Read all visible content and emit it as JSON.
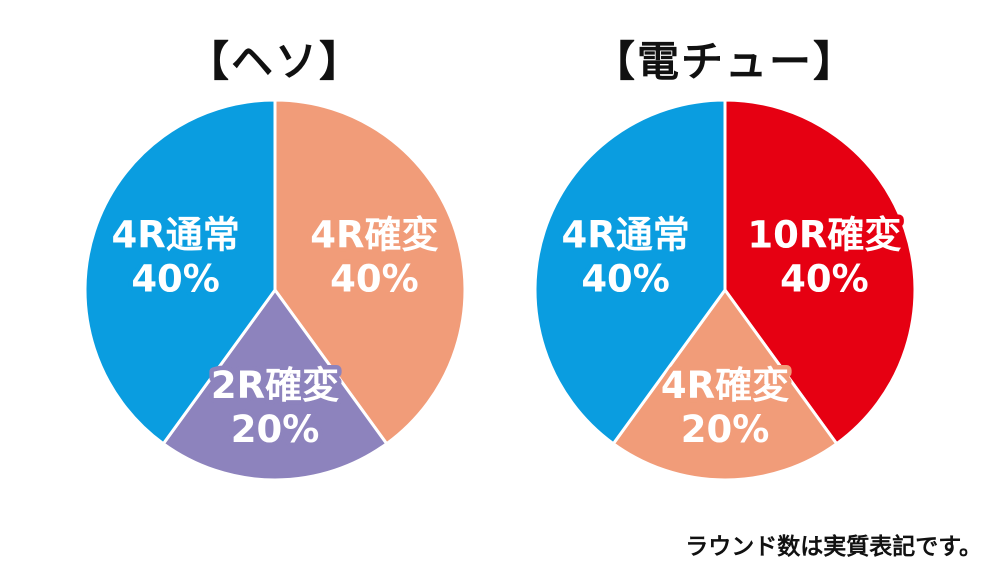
{
  "chart_data": [
    {
      "type": "pie",
      "title": "【ヘソ】",
      "slices": [
        {
          "label": "4R確変",
          "percent_label": "40%",
          "value": 40,
          "color": "#f19c79"
        },
        {
          "label": "2R確変",
          "percent_label": "20%",
          "value": 20,
          "color": "#8d83bd"
        },
        {
          "label": "4R通常",
          "percent_label": "40%",
          "value": 40,
          "color": "#0a9de0"
        }
      ]
    },
    {
      "type": "pie",
      "title": "【電チュー】",
      "slices": [
        {
          "label": "10R確変",
          "percent_label": "40%",
          "value": 40,
          "color": "#e60012"
        },
        {
          "label": "4R確変",
          "percent_label": "20%",
          "value": 20,
          "color": "#f19c79"
        },
        {
          "label": "4R通常",
          "percent_label": "40%",
          "value": 40,
          "color": "#0a9de0"
        }
      ]
    }
  ],
  "footnote": "ラウンド数は実質表記です。"
}
